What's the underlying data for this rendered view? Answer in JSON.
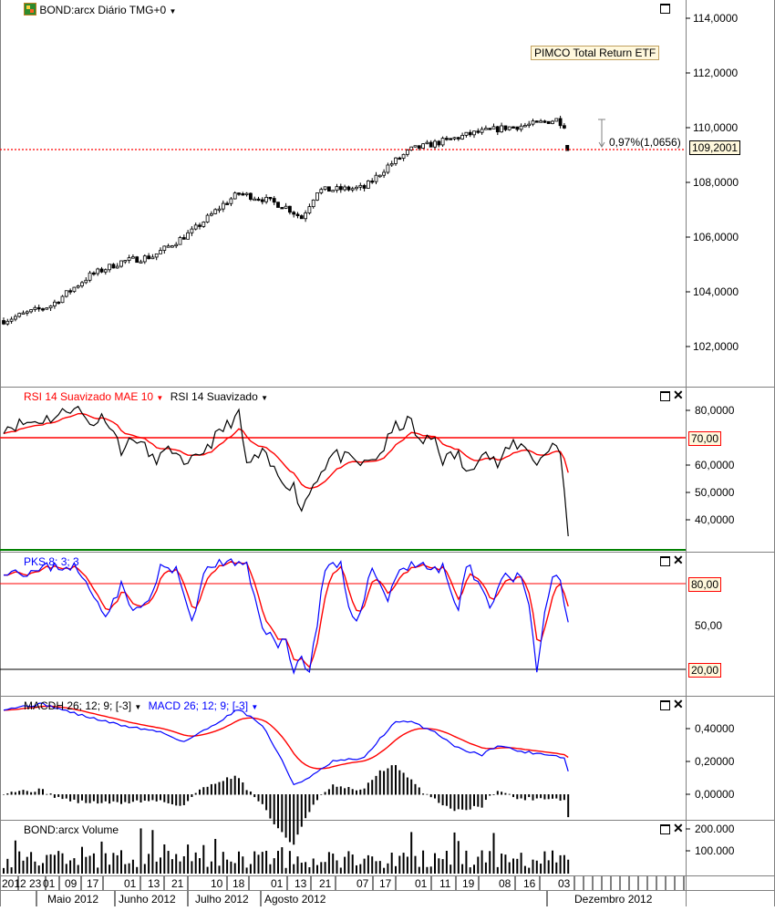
{
  "main": {
    "instrument_title": "BOND:arcx Diário TMG+0",
    "callout": "PIMCO Total Return ETF",
    "current_price": "109,2001",
    "change_label": "0,97%(1,0656)",
    "yaxis": [
      "114,0000",
      "112,0000",
      "110,0000",
      "108,0000",
      "106,0000",
      "104,0000",
      "102,0000"
    ]
  },
  "rsi": {
    "title_ma": "RSI 14 Suavizado MAE 10",
    "title_rsi": "RSI 14 Suavizado",
    "level_label": "70,00",
    "yaxis": [
      "80,0000",
      "60,0000",
      "50,0000",
      "40,0000"
    ]
  },
  "pks": {
    "title": "PKS 8; 3; 3",
    "upper_label": "80,00",
    "lower_label": "20,00",
    "yaxis_mid": "50,00"
  },
  "macd": {
    "title_hist": "MACDH 26; 12; 9; [-3]",
    "title_macd": "MACD 26; 12; 9; [-3]",
    "yaxis": [
      "0,40000",
      "0,20000",
      "0,00000"
    ]
  },
  "volume": {
    "title": "BOND:arcx Volume",
    "yaxis": [
      "200.000",
      "100.000"
    ]
  },
  "xaxis": {
    "days": [
      "2012",
      "23",
      "01",
      "09",
      "17",
      "01",
      "13",
      "21",
      "10",
      "18",
      "01",
      "13",
      "21",
      "07",
      "17",
      "01",
      "11",
      "19",
      "08",
      "16",
      "03"
    ],
    "months": [
      "Maio 2012",
      "Junho 2012",
      "Julho 2012",
      "Agosto 2012",
      "Dezembro 2012"
    ]
  },
  "colors": {
    "candle": "#000000",
    "rsi_ma": "#ff0000",
    "rsi": "#000000",
    "pks_k": "#0000ff",
    "pks_d": "#ff0000",
    "level_line": "#ff0000",
    "price_line": "#ff0000",
    "label_bg": "#fff8dc",
    "title_ma_color": "#ff0000",
    "title_blue": "#0000ff"
  },
  "icons": {
    "logo": "chart-logo-icon",
    "dropdown": "chevron-down-icon",
    "maximize": "maximize-icon",
    "close": "close-icon"
  }
}
